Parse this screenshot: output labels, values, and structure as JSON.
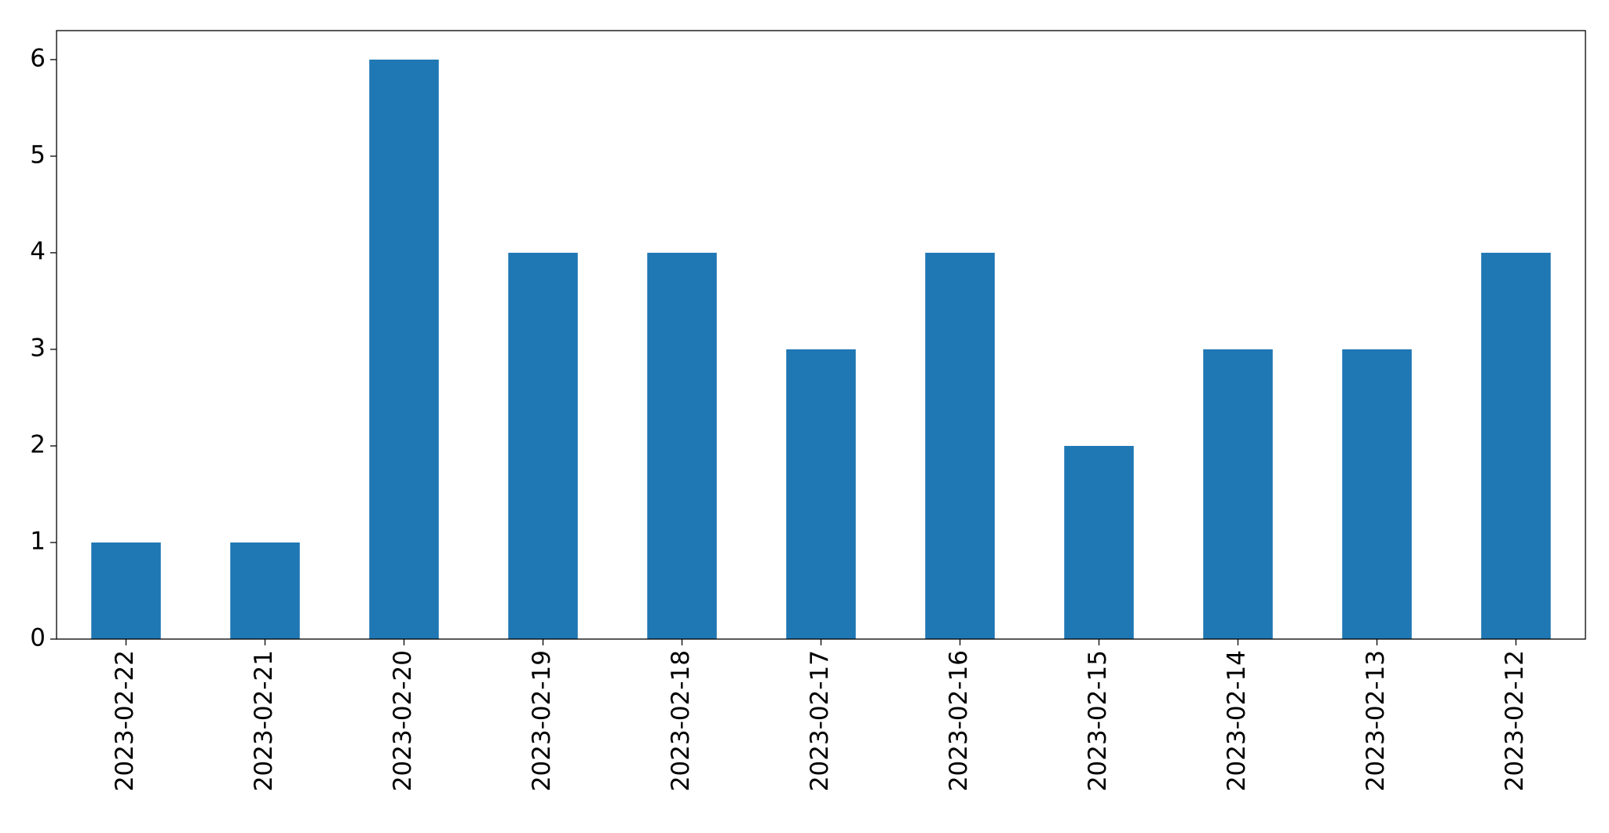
{
  "chart_data": {
    "type": "bar",
    "categories": [
      "2023-02-22",
      "2023-02-21",
      "2023-02-20",
      "2023-02-19",
      "2023-02-18",
      "2023-02-17",
      "2023-02-16",
      "2023-02-15",
      "2023-02-14",
      "2023-02-13",
      "2023-02-12"
    ],
    "values": [
      1,
      1,
      6,
      4,
      4,
      3,
      4,
      2,
      3,
      3,
      4
    ],
    "color": "#1f77b4",
    "ylim": [
      0,
      6.3
    ],
    "yticks": [
      0,
      1,
      2,
      3,
      4,
      5,
      6
    ],
    "grid": false
  }
}
